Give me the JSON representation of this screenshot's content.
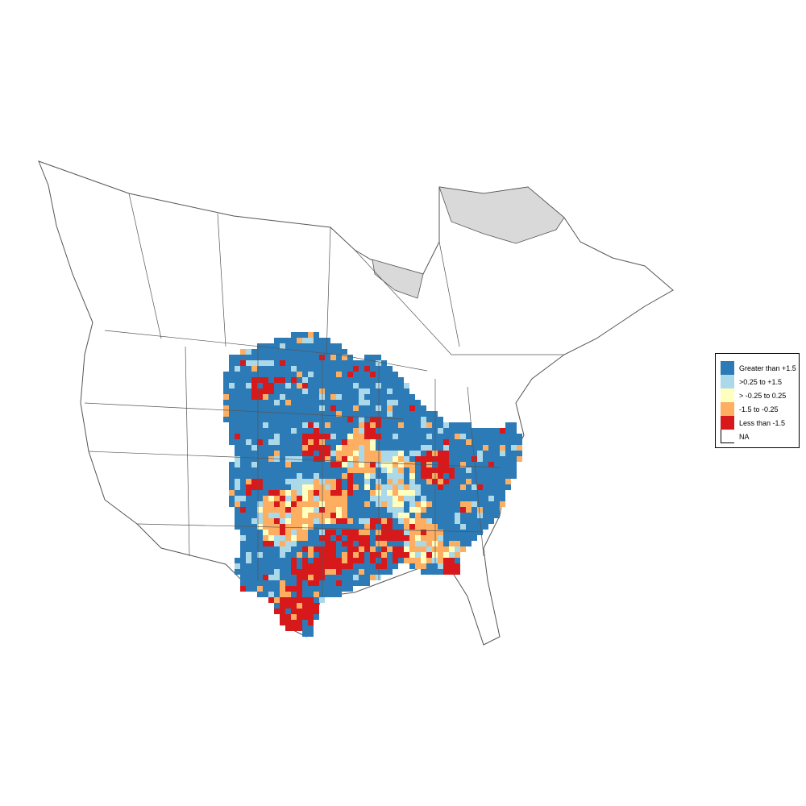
{
  "map": {
    "land_fill": "#ffffff",
    "border_color": "#555555",
    "na_region_fill": "#d9d9d9"
  },
  "legend": {
    "items": [
      {
        "label": "Greater than +1.5",
        "color": "#2c7bb6"
      },
      {
        "label": ">0.25 to +1.5",
        "color": "#abd9e9"
      },
      {
        "label": "> -0.25 to 0.25",
        "color": "#ffffbf"
      },
      {
        "label": "-1.5 to -0.25",
        "color": "#fdae61"
      },
      {
        "label": "Less than -1.5",
        "color": "#d7191c"
      },
      {
        "label": "NA",
        "color": "#ffffff"
      }
    ]
  }
}
